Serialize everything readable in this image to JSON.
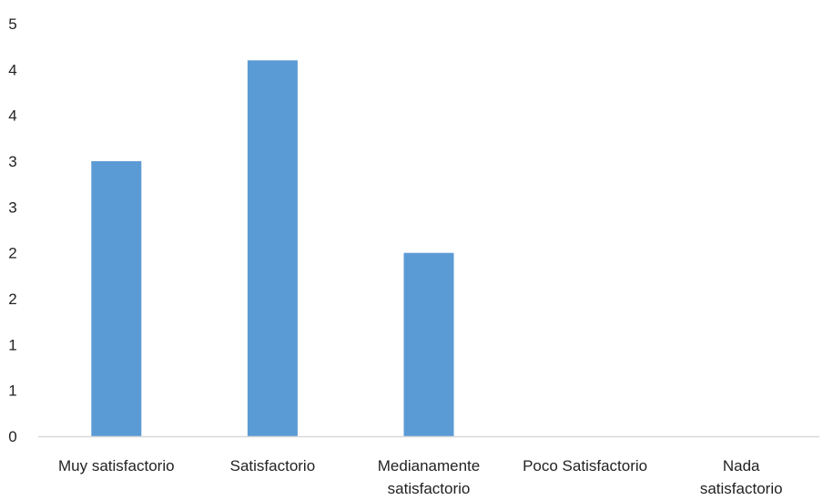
{
  "chart_data": {
    "type": "bar",
    "categories": [
      [
        "Muy satisfactorio"
      ],
      [
        "Satisfactorio"
      ],
      [
        "Medianamente",
        "satisfactorio"
      ],
      [
        "Poco Satisfactorio"
      ],
      [
        "Nada",
        "satisfactorio"
      ]
    ],
    "values": [
      3,
      4.1,
      2,
      0,
      0
    ],
    "y_tick_labels": [
      "0",
      "1",
      "1",
      "2",
      "2",
      "3",
      "3",
      "4",
      "4",
      "5"
    ],
    "ylim": [
      0,
      4.5
    ],
    "grid": false,
    "bar_color": "#5b9bd5",
    "axis_color": "#d9d9d9"
  }
}
